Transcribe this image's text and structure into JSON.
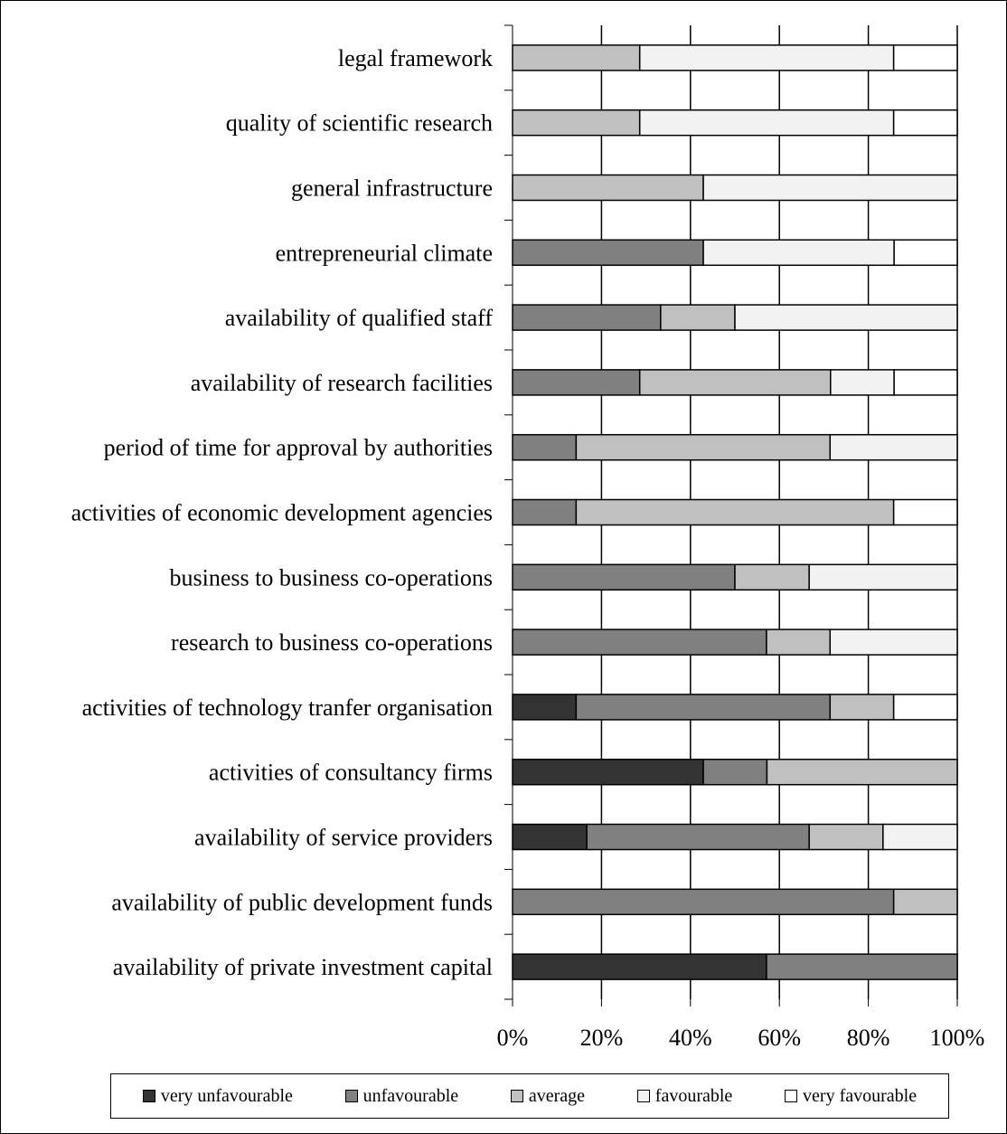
{
  "chart_data": {
    "type": "bar",
    "orientation": "horizontal",
    "stacked": true,
    "percent_scale": true,
    "categories": [
      "legal framework",
      "quality of scientific research",
      "general infrastructure",
      "entrepreneurial climate",
      "availability of qualified staff",
      "availability of research facilities",
      "period of time for approval by authorities",
      "activities of economic development agencies",
      "business to business co-operations",
      "research to business co-operations",
      "activities of technology tranfer organisation",
      "activities of consultancy firms",
      "availability of service providers",
      "availability of public development funds",
      "availability of private investment capital"
    ],
    "series": [
      {
        "name": "very unfavourable",
        "color": "#333333",
        "values": [
          0,
          0,
          0,
          0,
          0,
          0,
          0,
          0,
          0,
          0,
          14.3,
          42.9,
          16.7,
          0,
          57.1
        ]
      },
      {
        "name": "unfavourable",
        "color": "#808080",
        "values": [
          0,
          0,
          0,
          42.9,
          33.3,
          28.6,
          14.3,
          14.3,
          50,
          57.1,
          57.1,
          14.3,
          50,
          85.7,
          42.9
        ]
      },
      {
        "name": "average",
        "color": "#c0c0c0",
        "values": [
          28.6,
          28.6,
          42.9,
          0,
          16.7,
          42.9,
          57.1,
          71.4,
          16.7,
          14.3,
          14.3,
          42.8,
          16.6,
          14.3,
          0
        ]
      },
      {
        "name": "favourable",
        "color": "#f2f2f2",
        "values": [
          57.1,
          57.1,
          57.1,
          42.9,
          50,
          14.3,
          28.6,
          0,
          33.3,
          28.6,
          0,
          0,
          16.7,
          0,
          0
        ]
      },
      {
        "name": "very favourable",
        "color": "#ffffff",
        "values": [
          14.3,
          14.3,
          0,
          14.2,
          0,
          14.2,
          0,
          14.3,
          0,
          0,
          14.3,
          0,
          0,
          0,
          0
        ]
      }
    ],
    "xlim": [
      0,
      100
    ],
    "xticks": [
      "0%",
      "20%",
      "40%",
      "60%",
      "80%",
      "100%"
    ],
    "grid": true,
    "legend_position": "bottom"
  }
}
